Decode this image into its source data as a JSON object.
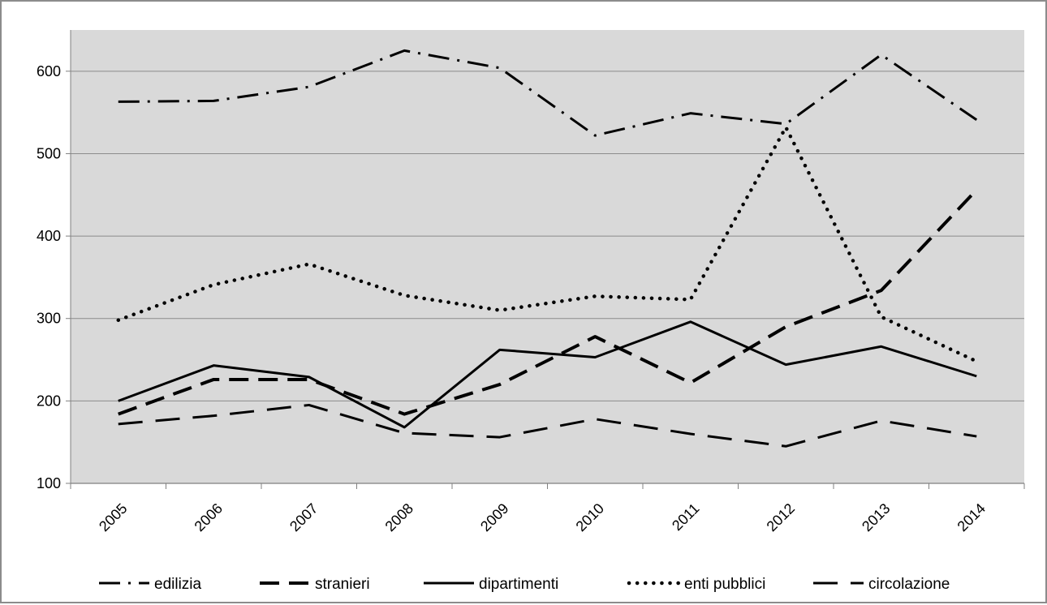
{
  "chart_data": {
    "type": "line",
    "title": "",
    "xlabel": "",
    "ylabel": "",
    "categories": [
      "2005",
      "2006",
      "2007",
      "2008",
      "2009",
      "2010",
      "2011",
      "2012",
      "2013",
      "2014"
    ],
    "ylim": [
      100,
      650
    ],
    "yticks": [
      "100",
      "200",
      "300",
      "400",
      "500",
      "600"
    ],
    "grid": true,
    "legend_position": "bottom",
    "colors": {
      "plot_background": "#d9d9d9",
      "gridline": "#8c8c8c",
      "series": "#000000",
      "frame": "#8c8c8c"
    },
    "series": [
      {
        "name": "edilizia",
        "style": "dash-dot",
        "values": [
          563,
          564,
          581,
          625,
          604,
          522,
          549,
          536,
          620,
          541
        ]
      },
      {
        "name": "stranieri",
        "style": "long-dash-thick",
        "values": [
          184,
          226,
          226,
          184,
          220,
          278,
          222,
          290,
          334,
          456
        ]
      },
      {
        "name": "dipartimenti",
        "style": "solid",
        "values": [
          200,
          243,
          229,
          168,
          262,
          253,
          296,
          244,
          266,
          230
        ]
      },
      {
        "name": "enti pubblici",
        "style": "dotted",
        "values": [
          298,
          341,
          366,
          328,
          310,
          327,
          323,
          532,
          302,
          248
        ]
      },
      {
        "name": "circolazione",
        "style": "long-dash",
        "values": [
          172,
          182,
          195,
          161,
          156,
          178,
          160,
          145,
          176,
          157
        ]
      }
    ]
  }
}
